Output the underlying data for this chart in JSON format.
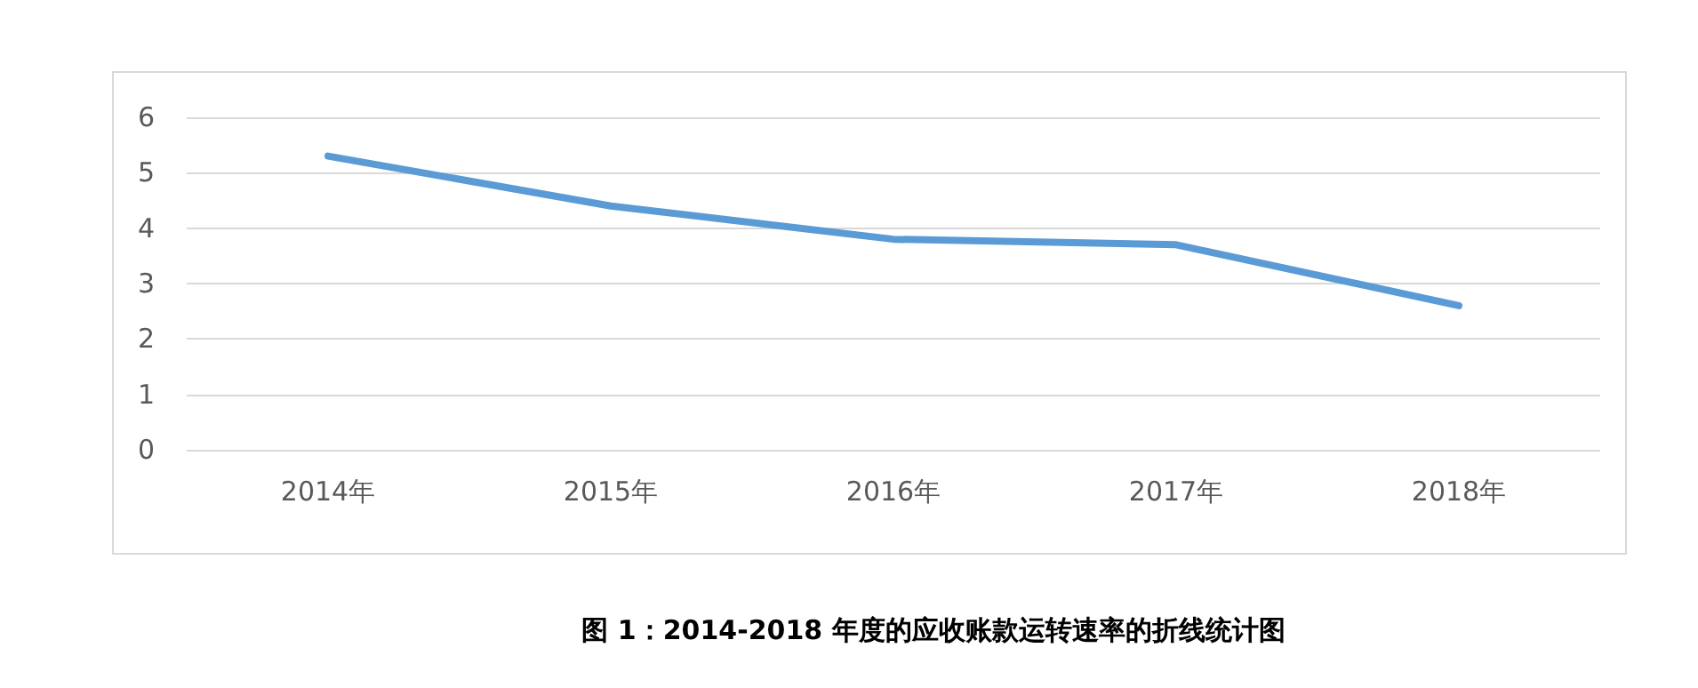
{
  "chart_data": {
    "type": "line",
    "title": "图 1：2014-2018 年度的应收账款运转速率的折线统计图",
    "categories": [
      "2014年",
      "2015年",
      "2016年",
      "2017年",
      "2018年"
    ],
    "series": [
      {
        "color": "#5b9bd5",
        "values": [
          5.3,
          4.4,
          3.8,
          3.7,
          2.6
        ]
      }
    ],
    "ylim": [
      0,
      6
    ],
    "yticks": [
      0,
      1,
      2,
      3,
      4,
      5,
      6
    ],
    "grid": "y",
    "marker": "none",
    "line_style": "solid"
  }
}
